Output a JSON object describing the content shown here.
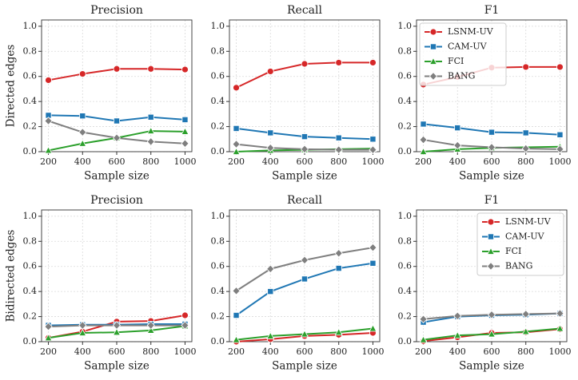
{
  "chart_data": [
    {
      "type": "line",
      "title": "Precision",
      "ylabel": "Directed edges",
      "xlabel": "Sample size",
      "x": [
        200,
        400,
        600,
        800,
        1000
      ],
      "xlim": [
        160,
        1040
      ],
      "xticks": [
        200,
        400,
        600,
        800,
        1000
      ],
      "ylim": [
        0,
        1.05
      ],
      "yticks": [
        {
          "value": 0,
          "label": "0.0"
        },
        {
          "value": 0.2,
          "label": "0.2"
        },
        {
          "value": 0.4,
          "label": "0.4"
        },
        {
          "value": 0.6,
          "label": "0.6"
        },
        {
          "value": 0.8,
          "label": "0.8"
        },
        {
          "value": 1,
          "label": "1.0"
        }
      ],
      "grid": true,
      "series": [
        {
          "name": "LSNM-UV",
          "color": "#d62728",
          "marker": "circle",
          "values": [
            0.57,
            0.62,
            0.66,
            0.66,
            0.655
          ]
        },
        {
          "name": "CAM-UV",
          "color": "#1f77b4",
          "marker": "square",
          "values": [
            0.29,
            0.285,
            0.245,
            0.275,
            0.255
          ]
        },
        {
          "name": "FCI",
          "color": "#2ca02c",
          "marker": "triangle",
          "values": [
            0.01,
            0.065,
            0.11,
            0.165,
            0.16
          ]
        },
        {
          "name": "BANG",
          "color": "#7f7f7f",
          "marker": "diamond",
          "values": [
            0.245,
            0.155,
            0.11,
            0.08,
            0.065
          ]
        }
      ]
    },
    {
      "type": "line",
      "title": "Recall",
      "xlabel": "Sample size",
      "x": [
        200,
        400,
        600,
        800,
        1000
      ],
      "xlim": [
        160,
        1040
      ],
      "xticks": [
        200,
        400,
        600,
        800,
        1000
      ],
      "ylim": [
        0,
        1.05
      ],
      "yticks": [
        {
          "value": 0,
          "label": "0.0"
        },
        {
          "value": 0.2,
          "label": "0.2"
        },
        {
          "value": 0.4,
          "label": "0.4"
        },
        {
          "value": 0.6,
          "label": "0.6"
        },
        {
          "value": 0.8,
          "label": "0.8"
        },
        {
          "value": 1,
          "label": "1.0"
        }
      ],
      "grid": true,
      "series": [
        {
          "name": "LSNM-UV",
          "color": "#d62728",
          "marker": "circle",
          "values": [
            0.51,
            0.64,
            0.7,
            0.71,
            0.71
          ]
        },
        {
          "name": "CAM-UV",
          "color": "#1f77b4",
          "marker": "square",
          "values": [
            0.185,
            0.15,
            0.12,
            0.11,
            0.1
          ]
        },
        {
          "name": "FCI",
          "color": "#2ca02c",
          "marker": "triangle",
          "values": [
            0.0,
            0.01,
            0.015,
            0.02,
            0.025
          ]
        },
        {
          "name": "BANG",
          "color": "#7f7f7f",
          "marker": "diamond",
          "values": [
            0.06,
            0.03,
            0.02,
            0.015,
            0.015
          ]
        }
      ]
    },
    {
      "type": "line",
      "title": "F1",
      "xlabel": "Sample size",
      "legend": "upper left",
      "x": [
        200,
        400,
        600,
        800,
        1000
      ],
      "xlim": [
        160,
        1040
      ],
      "xticks": [
        200,
        400,
        600,
        800,
        1000
      ],
      "ylim": [
        0,
        1.05
      ],
      "yticks": [
        {
          "value": 0,
          "label": "0.0"
        },
        {
          "value": 0.2,
          "label": "0.2"
        },
        {
          "value": 0.4,
          "label": "0.4"
        },
        {
          "value": 0.6,
          "label": "0.6"
        },
        {
          "value": 0.8,
          "label": "0.8"
        },
        {
          "value": 1,
          "label": "1.0"
        }
      ],
      "grid": true,
      "series": [
        {
          "name": "LSNM-UV",
          "color": "#d62728",
          "marker": "circle",
          "values": [
            0.535,
            0.595,
            0.67,
            0.675,
            0.675
          ]
        },
        {
          "name": "CAM-UV",
          "color": "#1f77b4",
          "marker": "square",
          "values": [
            0.22,
            0.19,
            0.155,
            0.15,
            0.135
          ]
        },
        {
          "name": "FCI",
          "color": "#2ca02c",
          "marker": "triangle",
          "values": [
            0.0,
            0.02,
            0.03,
            0.035,
            0.04
          ]
        },
        {
          "name": "BANG",
          "color": "#7f7f7f",
          "marker": "diamond",
          "values": [
            0.095,
            0.05,
            0.035,
            0.025,
            0.02
          ]
        }
      ]
    },
    {
      "type": "line",
      "title": "Precision",
      "ylabel": "Bidirected edges",
      "xlabel": "Sample size",
      "x": [
        200,
        400,
        600,
        800,
        1000
      ],
      "xlim": [
        160,
        1040
      ],
      "xticks": [
        200,
        400,
        600,
        800,
        1000
      ],
      "ylim": [
        0,
        1.05
      ],
      "yticks": [
        {
          "value": 0,
          "label": "0.0"
        },
        {
          "value": 0.2,
          "label": "0.2"
        },
        {
          "value": 0.4,
          "label": "0.4"
        },
        {
          "value": 0.6,
          "label": "0.6"
        },
        {
          "value": 0.8,
          "label": "0.8"
        },
        {
          "value": 1,
          "label": "1.0"
        }
      ],
      "grid": true,
      "series": [
        {
          "name": "LSNM-UV",
          "color": "#d62728",
          "marker": "circle",
          "values": [
            0.03,
            0.08,
            0.16,
            0.165,
            0.21
          ]
        },
        {
          "name": "CAM-UV",
          "color": "#1f77b4",
          "marker": "square",
          "values": [
            0.13,
            0.135,
            0.135,
            0.14,
            0.14
          ]
        },
        {
          "name": "FCI",
          "color": "#2ca02c",
          "marker": "triangle",
          "values": [
            0.03,
            0.07,
            0.075,
            0.09,
            0.125
          ]
        },
        {
          "name": "BANG",
          "color": "#7f7f7f",
          "marker": "diamond",
          "values": [
            0.12,
            0.13,
            0.13,
            0.13,
            0.13
          ]
        }
      ]
    },
    {
      "type": "line",
      "title": "Recall",
      "xlabel": "Sample size",
      "x": [
        200,
        400,
        600,
        800,
        1000
      ],
      "xlim": [
        160,
        1040
      ],
      "xticks": [
        200,
        400,
        600,
        800,
        1000
      ],
      "ylim": [
        0,
        1.05
      ],
      "yticks": [
        {
          "value": 0,
          "label": "0.0"
        },
        {
          "value": 0.2,
          "label": "0.2"
        },
        {
          "value": 0.4,
          "label": "0.4"
        },
        {
          "value": 0.6,
          "label": "0.6"
        },
        {
          "value": 0.8,
          "label": "0.8"
        },
        {
          "value": 1,
          "label": "1.0"
        }
      ],
      "grid": true,
      "series": [
        {
          "name": "LSNM-UV",
          "color": "#d62728",
          "marker": "circle",
          "values": [
            0.0,
            0.02,
            0.045,
            0.055,
            0.07
          ]
        },
        {
          "name": "CAM-UV",
          "color": "#1f77b4",
          "marker": "square",
          "values": [
            0.21,
            0.4,
            0.5,
            0.585,
            0.625
          ]
        },
        {
          "name": "FCI",
          "color": "#2ca02c",
          "marker": "triangle",
          "values": [
            0.015,
            0.045,
            0.06,
            0.075,
            0.105
          ]
        },
        {
          "name": "BANG",
          "color": "#7f7f7f",
          "marker": "diamond",
          "values": [
            0.405,
            0.58,
            0.65,
            0.705,
            0.75
          ]
        }
      ]
    },
    {
      "type": "line",
      "title": "F1",
      "xlabel": "Sample size",
      "legend": "upper right",
      "x": [
        200,
        400,
        600,
        800,
        1000
      ],
      "xlim": [
        160,
        1040
      ],
      "xticks": [
        200,
        400,
        600,
        800,
        1000
      ],
      "ylim": [
        0,
        1.05
      ],
      "yticks": [
        {
          "value": 0,
          "label": "0.0"
        },
        {
          "value": 0.2,
          "label": "0.2"
        },
        {
          "value": 0.4,
          "label": "0.4"
        },
        {
          "value": 0.6,
          "label": "0.6"
        },
        {
          "value": 0.8,
          "label": "0.8"
        },
        {
          "value": 1,
          "label": "1.0"
        }
      ],
      "grid": true,
      "series": [
        {
          "name": "LSNM-UV",
          "color": "#d62728",
          "marker": "circle",
          "values": [
            0.005,
            0.035,
            0.07,
            0.075,
            0.1
          ]
        },
        {
          "name": "CAM-UV",
          "color": "#1f77b4",
          "marker": "square",
          "values": [
            0.155,
            0.2,
            0.21,
            0.215,
            0.225
          ]
        },
        {
          "name": "FCI",
          "color": "#2ca02c",
          "marker": "triangle",
          "values": [
            0.015,
            0.05,
            0.06,
            0.08,
            0.105
          ]
        },
        {
          "name": "BANG",
          "color": "#7f7f7f",
          "marker": "diamond",
          "values": [
            0.18,
            0.205,
            0.215,
            0.22,
            0.225
          ]
        }
      ]
    }
  ]
}
